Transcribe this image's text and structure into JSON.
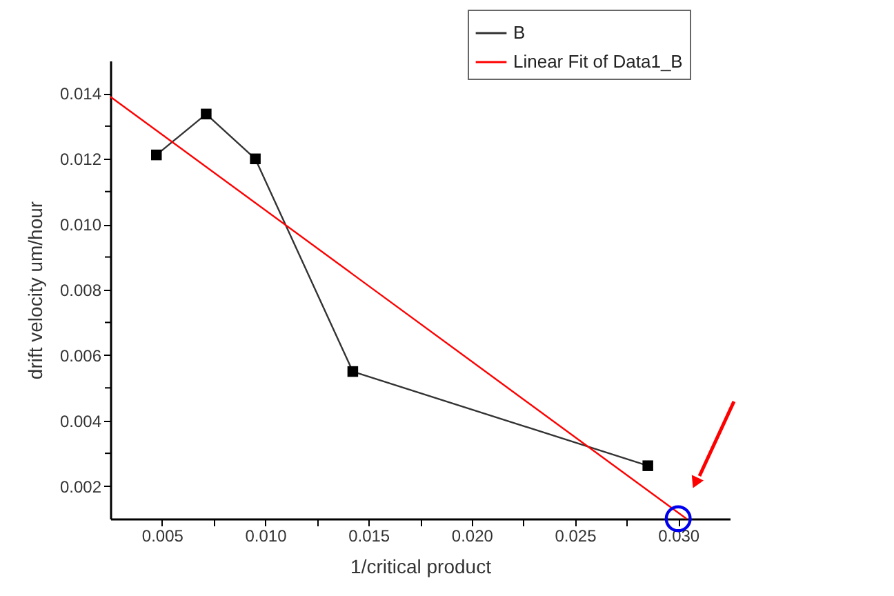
{
  "chart_data": {
    "type": "line",
    "xlabel": "1/critical product",
    "ylabel": "drift velocity um/hour",
    "xlim": [
      0.0025,
      0.0325
    ],
    "ylim": [
      0.001,
      0.015
    ],
    "xticks": [
      {
        "value": 0.005,
        "label": "0.005"
      },
      {
        "value": 0.0075,
        "label": null
      },
      {
        "value": 0.01,
        "label": "0.010"
      },
      {
        "value": 0.0125,
        "label": null
      },
      {
        "value": 0.015,
        "label": "0.015"
      },
      {
        "value": 0.0175,
        "label": null
      },
      {
        "value": 0.02,
        "label": "0.020"
      },
      {
        "value": 0.0225,
        "label": null
      },
      {
        "value": 0.025,
        "label": "0.025"
      },
      {
        "value": 0.0275,
        "label": null
      },
      {
        "value": 0.03,
        "label": "0.030"
      }
    ],
    "yticks": [
      {
        "value": 0.002,
        "label": "0.002"
      },
      {
        "value": 0.003,
        "label": null
      },
      {
        "value": 0.004,
        "label": "0.004"
      },
      {
        "value": 0.005,
        "label": null
      },
      {
        "value": 0.006,
        "label": "0.006"
      },
      {
        "value": 0.007,
        "label": null
      },
      {
        "value": 0.008,
        "label": "0.008"
      },
      {
        "value": 0.009,
        "label": null
      },
      {
        "value": 0.01,
        "label": "0.010"
      },
      {
        "value": 0.011,
        "label": null
      },
      {
        "value": 0.012,
        "label": "0.012"
      },
      {
        "value": 0.013,
        "label": null
      },
      {
        "value": 0.014,
        "label": "0.014"
      }
    ],
    "series": [
      {
        "name": "B",
        "color": "#333333",
        "marker": "square",
        "x": [
          0.00473,
          0.00714,
          0.00952,
          0.01424,
          0.02853
        ],
        "values": [
          0.01212,
          0.01337,
          0.012,
          0.0055,
          0.00262
        ]
      },
      {
        "name": "Linear Fit of Data1_B",
        "color": "#ff0000",
        "marker": "none",
        "x": [
          0.0025,
          0.0304
        ],
        "values": [
          0.0139,
          0.001
        ]
      },
      {
        "type": "scatter",
        "color": "#0000ee",
        "marker": "circle",
        "x": [
          0.03
        ],
        "values": [
          0.001
        ]
      }
    ],
    "legend": "top right",
    "grid": false
  }
}
